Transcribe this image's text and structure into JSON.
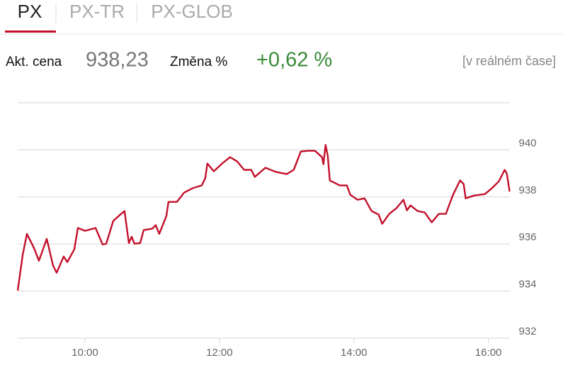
{
  "tabs": [
    "PX",
    "PX-TR",
    "PX-GLOB"
  ],
  "quote": {
    "price_label": "Akt. cena",
    "price": "938,23",
    "change_label": "Změna %",
    "change": "+0,62 %",
    "realtime": "[v reálném čase]"
  },
  "chart_data": {
    "type": "line",
    "x": [
      9.0,
      9.074,
      9.137,
      9.242,
      9.316,
      9.432,
      9.526,
      9.579,
      9.684,
      9.737,
      9.842,
      9.895,
      10.0,
      10.158,
      10.263,
      10.316,
      10.421,
      10.526,
      10.589,
      10.653,
      10.695,
      10.737,
      10.821,
      10.874,
      11.0,
      11.053,
      11.105,
      11.211,
      11.242,
      11.368,
      11.474,
      11.6,
      11.737,
      11.789,
      11.821,
      11.916,
      12.053,
      12.158,
      12.263,
      12.368,
      12.474,
      12.526,
      12.684,
      12.842,
      13.0,
      13.105,
      13.211,
      13.316,
      13.421,
      13.526,
      13.547,
      13.579,
      13.611,
      13.642,
      13.789,
      13.895,
      13.947,
      14.053,
      14.158,
      14.263,
      14.368,
      14.421,
      14.526,
      14.632,
      14.737,
      14.789,
      14.842,
      14.947,
      15.053,
      15.158,
      15.263,
      15.368,
      15.474,
      15.579,
      15.632,
      15.663,
      15.789,
      15.947,
      16.053,
      16.158,
      16.242,
      16.274,
      16.316
    ],
    "series": [
      {
        "color": "#c3102b",
        "values": [
          934.02,
          935.53,
          936.43,
          935.83,
          935.29,
          936.22,
          935.08,
          934.78,
          935.47,
          935.23,
          935.77,
          936.68,
          936.56,
          936.68,
          935.98,
          936.01,
          936.98,
          937.25,
          937.4,
          936.04,
          936.31,
          936.01,
          936.04,
          936.59,
          936.65,
          936.8,
          936.43,
          937.19,
          937.79,
          937.79,
          938.18,
          938.37,
          938.49,
          938.79,
          939.42,
          939.09,
          939.45,
          939.69,
          939.51,
          939.15,
          939.15,
          938.85,
          939.24,
          939.06,
          938.97,
          939.15,
          939.93,
          939.96,
          939.96,
          939.69,
          939.39,
          940.21,
          939.75,
          938.7,
          938.49,
          938.49,
          938.09,
          937.88,
          937.94,
          937.4,
          937.25,
          936.86,
          937.28,
          937.52,
          937.88,
          937.43,
          937.64,
          937.4,
          937.34,
          936.92,
          937.28,
          937.28,
          938.09,
          938.7,
          938.55,
          937.94,
          938.06,
          938.12,
          938.37,
          938.67,
          939.15,
          939.0,
          938.23
        ]
      }
    ],
    "xlim": [
      9,
      16.32
    ],
    "xticks": [
      {
        "value": 10,
        "label": "10:00"
      },
      {
        "value": 12,
        "label": "12:00"
      },
      {
        "value": 14,
        "label": "14:00"
      },
      {
        "value": 16,
        "label": "16:00"
      }
    ],
    "ylim": [
      932,
      942
    ],
    "yticks": [
      932,
      934,
      936,
      938,
      940
    ],
    "grid": true
  }
}
